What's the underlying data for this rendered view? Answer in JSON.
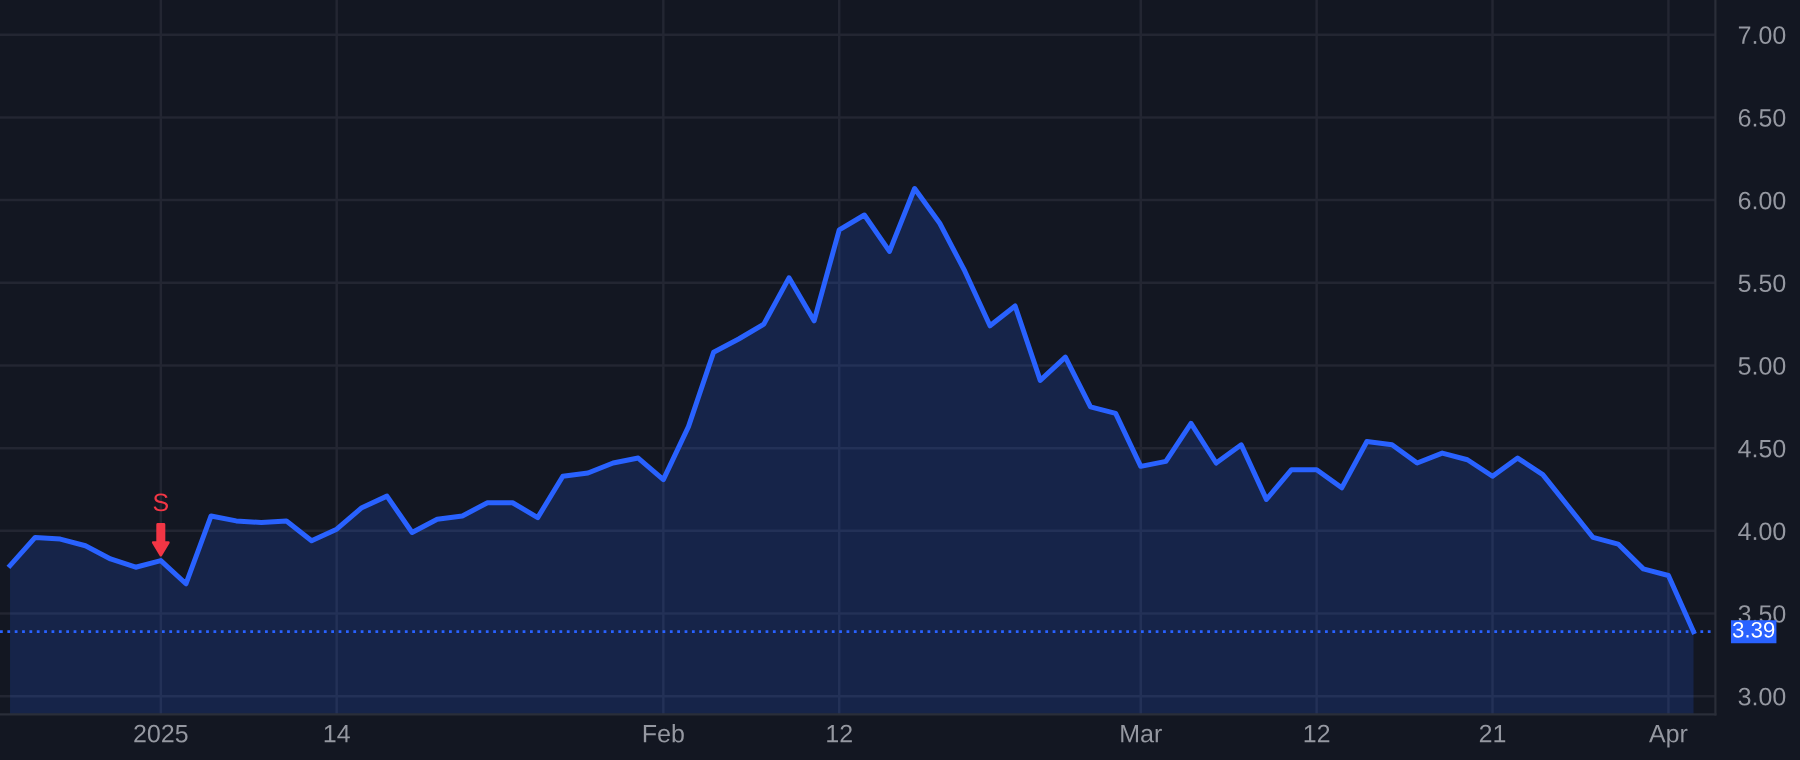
{
  "chart_data": {
    "type": "area",
    "categories": [
      null,
      null,
      null,
      null,
      null,
      null,
      "2025",
      null,
      null,
      null,
      null,
      null,
      null,
      "14",
      null,
      null,
      null,
      null,
      null,
      null,
      null,
      null,
      null,
      null,
      null,
      null,
      "Feb",
      null,
      null,
      null,
      null,
      null,
      null,
      "12",
      null,
      null,
      null,
      null,
      null,
      null,
      null,
      null,
      null,
      null,
      null,
      "Mar",
      null,
      null,
      null,
      null,
      null,
      null,
      "12",
      null,
      null,
      null,
      null,
      null,
      null,
      "21",
      null,
      null,
      null,
      null,
      null,
      null,
      "Apr",
      null
    ],
    "series": [
      {
        "color": "#2962ff",
        "values": [
          3.79,
          3.96,
          3.95,
          3.91,
          3.83,
          3.78,
          3.82,
          3.68,
          4.09,
          4.06,
          4.05,
          4.06,
          3.94,
          4.01,
          4.14,
          4.21,
          3.99,
          4.07,
          4.09,
          4.17,
          4.17,
          4.08,
          4.33,
          4.35,
          4.41,
          4.44,
          4.31,
          4.63,
          5.08,
          5.16,
          5.25,
          5.53,
          5.27,
          5.82,
          5.91,
          5.69,
          6.07,
          5.86,
          5.57,
          5.24,
          5.36,
          4.91,
          5.05,
          4.75,
          4.71,
          4.39,
          4.42,
          4.65,
          4.41,
          4.52,
          4.19,
          4.37,
          4.37,
          4.26,
          4.54,
          4.52,
          4.41,
          4.47,
          4.43,
          4.33,
          4.44,
          4.34,
          4.15,
          3.96,
          3.92,
          3.77,
          3.73,
          3.39
        ]
      }
    ],
    "ylim": [
      2.89,
      7.21
    ],
    "yticks": [
      {
        "value": 3,
        "label": "3.00"
      },
      {
        "value": 3.5,
        "label": "3.50"
      },
      {
        "value": 4,
        "label": "4.00"
      },
      {
        "value": 4.5,
        "label": "4.50"
      },
      {
        "value": 5,
        "label": "5.00"
      },
      {
        "value": 5.5,
        "label": "5.50"
      },
      {
        "value": 6,
        "label": "6.00"
      },
      {
        "value": 6.5,
        "label": "6.50"
      },
      {
        "value": 7,
        "label": "7.00"
      }
    ],
    "ref_lines": [
      {
        "axis": "y",
        "value": 3.39,
        "label": "3.39",
        "color": "#2962ff",
        "line_style": "dotted"
      }
    ],
    "annotations": [
      {
        "text": "S",
        "x": "2025",
        "y": 3.82
      }
    ],
    "grid": true,
    "legend": false
  }
}
